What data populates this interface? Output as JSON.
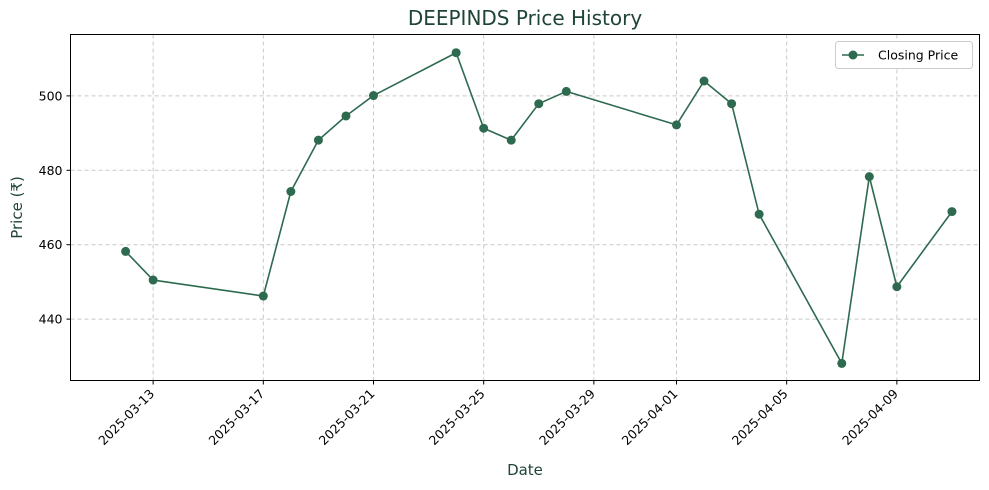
{
  "chart_data": {
    "type": "line",
    "title": "DEEPINDS Price History",
    "xlabel": "Date",
    "ylabel": "Price (₹)",
    "x_ticks": [
      "2025-03-13",
      "2025-03-17",
      "2025-03-21",
      "2025-03-25",
      "2025-03-29",
      "2025-04-01",
      "2025-04-05",
      "2025-04-09"
    ],
    "y_ticks": [
      440,
      460,
      480,
      500
    ],
    "xlim": [
      "2025-03-10",
      "2025-04-12"
    ],
    "ylim": [
      423.5,
      516.5
    ],
    "grid": true,
    "legend_position": "top-right",
    "series": [
      {
        "name": "Closing Price",
        "color": "#2d6a4f",
        "marker": "circle",
        "points": [
          {
            "x": "2025-03-12",
            "y": 458.2
          },
          {
            "x": "2025-03-13",
            "y": 450.5
          },
          {
            "x": "2025-03-17",
            "y": 446.2
          },
          {
            "x": "2025-03-18",
            "y": 474.3
          },
          {
            "x": "2025-03-19",
            "y": 488.1
          },
          {
            "x": "2025-03-20",
            "y": 494.6
          },
          {
            "x": "2025-03-21",
            "y": 500.1
          },
          {
            "x": "2025-03-24",
            "y": 511.6
          },
          {
            "x": "2025-03-25",
            "y": 491.3
          },
          {
            "x": "2025-03-26",
            "y": 488.1
          },
          {
            "x": "2025-03-27",
            "y": 497.9
          },
          {
            "x": "2025-03-28",
            "y": 501.2
          },
          {
            "x": "2025-04-01",
            "y": 492.2
          },
          {
            "x": "2025-04-02",
            "y": 504.0
          },
          {
            "x": "2025-04-03",
            "y": 497.9
          },
          {
            "x": "2025-04-04",
            "y": 468.2
          },
          {
            "x": "2025-04-07",
            "y": 428.1
          },
          {
            "x": "2025-04-08",
            "y": 478.3
          },
          {
            "x": "2025-04-09",
            "y": 448.7
          },
          {
            "x": "2025-04-11",
            "y": 468.9
          }
        ]
      }
    ]
  }
}
